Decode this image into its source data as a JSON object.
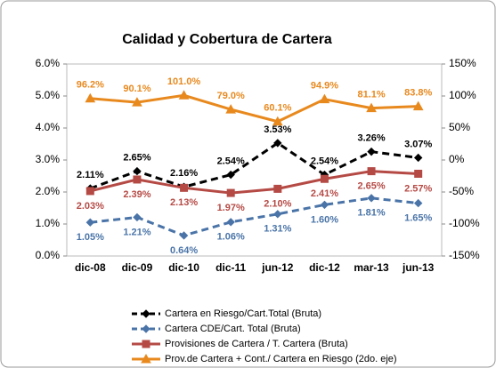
{
  "chart_data": {
    "type": "line",
    "title": "Calidad y Cobertura de Cartera",
    "categories": [
      "dic-08",
      "dic-09",
      "dic-10",
      "dic-11",
      "jun-12",
      "dic-12",
      "mar-13",
      "jun-13"
    ],
    "ylim": [
      0,
      6
    ],
    "yticks": [
      {
        "value": 0,
        "label": "0.0%"
      },
      {
        "value": 1,
        "label": "1.0%"
      },
      {
        "value": 2,
        "label": "2.0%"
      },
      {
        "value": 3,
        "label": "3.0%"
      },
      {
        "value": 4,
        "label": "4.0%"
      },
      {
        "value": 5,
        "label": "5.0%"
      },
      {
        "value": 6,
        "label": "6.0%"
      }
    ],
    "y2lim": [
      -150,
      150
    ],
    "y2ticks": [
      {
        "value": -150,
        "label": "-150%"
      },
      {
        "value": -100,
        "label": "-100%"
      },
      {
        "value": -50,
        "label": "-50%"
      },
      {
        "value": 0,
        "label": "0%"
      },
      {
        "value": 50,
        "label": "50%"
      },
      {
        "value": 100,
        "label": "100%"
      },
      {
        "value": 150,
        "label": "150%"
      }
    ],
    "series": [
      {
        "name": "Cartera en Riesgo/Cart.Total (Bruta)",
        "color": "#000000",
        "dash": true,
        "marker": "diamond",
        "label_pos": "above",
        "values": [
          2.11,
          2.65,
          2.16,
          2.54,
          3.53,
          2.54,
          3.26,
          3.07
        ],
        "value_labels": [
          "2.11%",
          "2.65%",
          "2.16%",
          "2.54%",
          "3.53%",
          "2.54%",
          "3.26%",
          "3.07%"
        ]
      },
      {
        "name": "Cartera CDE/Cart. Total (Bruta)",
        "color": "#4a74a8",
        "dash": true,
        "marker": "diamond",
        "label_pos": "below",
        "values": [
          1.05,
          1.21,
          0.64,
          1.06,
          1.31,
          1.6,
          1.81,
          1.65
        ],
        "value_labels": [
          "1.05%",
          "1.21%",
          "0.64%",
          "1.06%",
          "1.31%",
          "1.60%",
          "1.81%",
          "1.65%"
        ]
      },
      {
        "name": "Provisiones de Cartera / T. Cartera (Bruta)",
        "color": "#b54a45",
        "dash": false,
        "marker": "square",
        "label_pos": "below",
        "values": [
          2.03,
          2.39,
          2.13,
          1.97,
          2.1,
          2.41,
          2.65,
          2.57
        ],
        "value_labels": [
          "2.03%",
          "2.39%",
          "2.13%",
          "1.97%",
          "2.10%",
          "2.41%",
          "2.65%",
          "2.57%"
        ]
      },
      {
        "name": "Prov.de Cartera + Cont./ Cartera en Riesgo (2do. eje)",
        "color": "#e8891e",
        "dash": false,
        "marker": "triangle",
        "label_pos": "above",
        "axis": "y2",
        "values": [
          96.2,
          90.1,
          101.0,
          79.0,
          60.1,
          94.9,
          81.1,
          83.8
        ],
        "value_labels": [
          "96.2%",
          "90.1%",
          "101.0%",
          "79.0%",
          "60.1%",
          "94.9%",
          "81.1%",
          "83.8%"
        ]
      }
    ]
  }
}
